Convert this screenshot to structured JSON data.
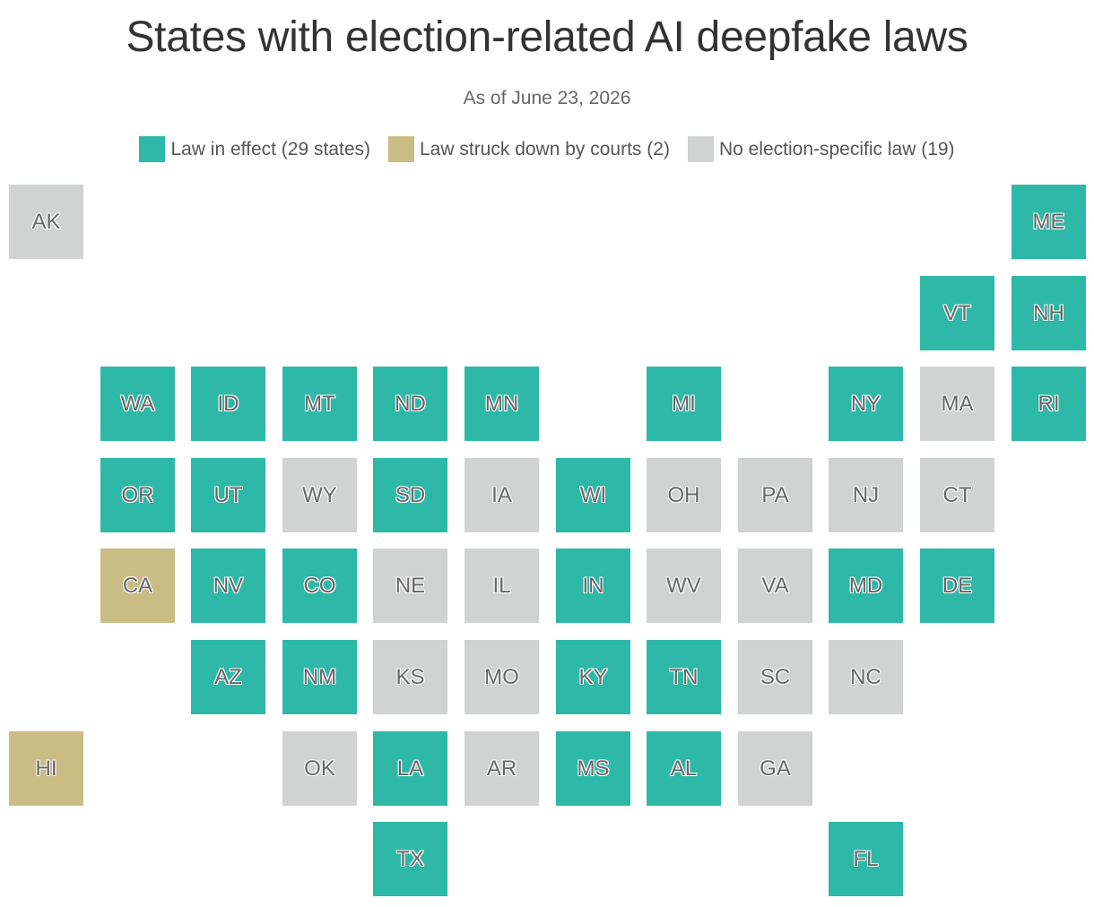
{
  "title": "States with election-related AI deepfake laws",
  "subtitle": "As of June 23, 2026",
  "colors": {
    "effect": "#2eb8a8",
    "struck": "#c9bc84",
    "none": "#d1d3d3"
  },
  "legend": [
    {
      "key": "effect",
      "label": "Law in effect (29 states)"
    },
    {
      "key": "struck",
      "label": "Law struck down by courts (2)"
    },
    {
      "key": "none",
      "label": "No election-specific law (19)"
    }
  ],
  "states": [
    {
      "abbr": "AK",
      "status": "none",
      "row": 0,
      "col": 0
    },
    {
      "abbr": "ME",
      "status": "effect",
      "row": 0,
      "col": 11
    },
    {
      "abbr": "VT",
      "status": "effect",
      "row": 1,
      "col": 10
    },
    {
      "abbr": "NH",
      "status": "effect",
      "row": 1,
      "col": 11
    },
    {
      "abbr": "WA",
      "status": "effect",
      "row": 2,
      "col": 1
    },
    {
      "abbr": "ID",
      "status": "effect",
      "row": 2,
      "col": 2
    },
    {
      "abbr": "MT",
      "status": "effect",
      "row": 2,
      "col": 3
    },
    {
      "abbr": "ND",
      "status": "effect",
      "row": 2,
      "col": 4
    },
    {
      "abbr": "MN",
      "status": "effect",
      "row": 2,
      "col": 5
    },
    {
      "abbr": "MI",
      "status": "effect",
      "row": 2,
      "col": 7
    },
    {
      "abbr": "NY",
      "status": "effect",
      "row": 2,
      "col": 9
    },
    {
      "abbr": "MA",
      "status": "none",
      "row": 2,
      "col": 10
    },
    {
      "abbr": "RI",
      "status": "effect",
      "row": 2,
      "col": 11
    },
    {
      "abbr": "OR",
      "status": "effect",
      "row": 3,
      "col": 1
    },
    {
      "abbr": "UT",
      "status": "effect",
      "row": 3,
      "col": 2
    },
    {
      "abbr": "WY",
      "status": "none",
      "row": 3,
      "col": 3
    },
    {
      "abbr": "SD",
      "status": "effect",
      "row": 3,
      "col": 4
    },
    {
      "abbr": "IA",
      "status": "none",
      "row": 3,
      "col": 5
    },
    {
      "abbr": "WI",
      "status": "effect",
      "row": 3,
      "col": 6
    },
    {
      "abbr": "OH",
      "status": "none",
      "row": 3,
      "col": 7
    },
    {
      "abbr": "PA",
      "status": "none",
      "row": 3,
      "col": 8
    },
    {
      "abbr": "NJ",
      "status": "none",
      "row": 3,
      "col": 9
    },
    {
      "abbr": "CT",
      "status": "none",
      "row": 3,
      "col": 10
    },
    {
      "abbr": "CA",
      "status": "struck",
      "row": 4,
      "col": 1
    },
    {
      "abbr": "NV",
      "status": "effect",
      "row": 4,
      "col": 2
    },
    {
      "abbr": "CO",
      "status": "effect",
      "row": 4,
      "col": 3
    },
    {
      "abbr": "NE",
      "status": "none",
      "row": 4,
      "col": 4
    },
    {
      "abbr": "IL",
      "status": "none",
      "row": 4,
      "col": 5
    },
    {
      "abbr": "IN",
      "status": "effect",
      "row": 4,
      "col": 6
    },
    {
      "abbr": "WV",
      "status": "none",
      "row": 4,
      "col": 7
    },
    {
      "abbr": "VA",
      "status": "none",
      "row": 4,
      "col": 8
    },
    {
      "abbr": "MD",
      "status": "effect",
      "row": 4,
      "col": 9
    },
    {
      "abbr": "DE",
      "status": "effect",
      "row": 4,
      "col": 10
    },
    {
      "abbr": "AZ",
      "status": "effect",
      "row": 5,
      "col": 2
    },
    {
      "abbr": "NM",
      "status": "effect",
      "row": 5,
      "col": 3
    },
    {
      "abbr": "KS",
      "status": "none",
      "row": 5,
      "col": 4
    },
    {
      "abbr": "MO",
      "status": "none",
      "row": 5,
      "col": 5
    },
    {
      "abbr": "KY",
      "status": "effect",
      "row": 5,
      "col": 6
    },
    {
      "abbr": "TN",
      "status": "effect",
      "row": 5,
      "col": 7
    },
    {
      "abbr": "SC",
      "status": "none",
      "row": 5,
      "col": 8
    },
    {
      "abbr": "NC",
      "status": "none",
      "row": 5,
      "col": 9
    },
    {
      "abbr": "HI",
      "status": "struck",
      "row": 6,
      "col": 0
    },
    {
      "abbr": "OK",
      "status": "none",
      "row": 6,
      "col": 3
    },
    {
      "abbr": "LA",
      "status": "effect",
      "row": 6,
      "col": 4
    },
    {
      "abbr": "AR",
      "status": "none",
      "row": 6,
      "col": 5
    },
    {
      "abbr": "MS",
      "status": "effect",
      "row": 6,
      "col": 6
    },
    {
      "abbr": "AL",
      "status": "effect",
      "row": 6,
      "col": 7
    },
    {
      "abbr": "GA",
      "status": "none",
      "row": 6,
      "col": 8
    },
    {
      "abbr": "TX",
      "status": "effect",
      "row": 7,
      "col": 4
    },
    {
      "abbr": "FL",
      "status": "effect",
      "row": 7,
      "col": 9
    }
  ]
}
